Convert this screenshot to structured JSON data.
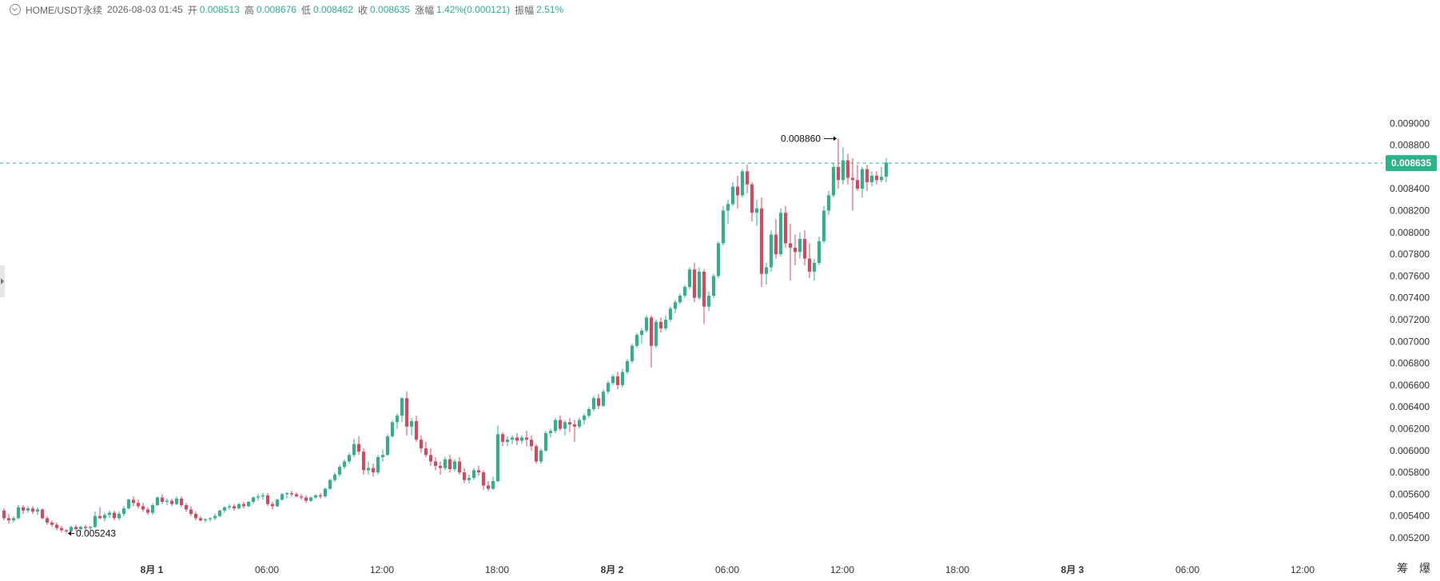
{
  "header": {
    "symbol": "HOME/USDT永续",
    "datetime": "2026-08-03 01:45",
    "open_label": "开",
    "open": "0.008513",
    "high_label": "高",
    "high": "0.008676",
    "low_label": "低",
    "low": "0.008462",
    "close_label": "收",
    "close": "0.008635",
    "change_label": "涨幅",
    "change": "1.42%(0.000121)",
    "amp_label": "振幅",
    "amp": "2.51%"
  },
  "footer": {
    "btn1": "筹",
    "btn2": "爆"
  },
  "chart_data": {
    "type": "candlestick",
    "price_axis_ticks": [
      "0.005200",
      "0.005400",
      "0.005600",
      "0.005800",
      "0.006000",
      "0.006200",
      "0.006400",
      "0.006600",
      "0.006800",
      "0.007000",
      "0.007200",
      "0.007400",
      "0.007600",
      "0.007800",
      "0.008000",
      "0.008200",
      "0.008400",
      "0.008600",
      "0.008800",
      "0.009000"
    ],
    "time_axis_ticks": [
      {
        "label": "8月 1",
        "bold": true
      },
      {
        "label": "06:00",
        "bold": false
      },
      {
        "label": "12:00",
        "bold": false
      },
      {
        "label": "18:00",
        "bold": false
      },
      {
        "label": "8月 2",
        "bold": true
      },
      {
        "label": "06:00",
        "bold": false
      },
      {
        "label": "12:00",
        "bold": false
      },
      {
        "label": "18:00",
        "bold": false
      },
      {
        "label": "8月 3",
        "bold": true
      },
      {
        "label": "06:00",
        "bold": false
      },
      {
        "label": "12:00",
        "bold": false
      }
    ],
    "last_price": "0.008635",
    "max_label": "0.008860",
    "min_label": "0.005243",
    "colors": {
      "up": "#2bb38a",
      "down": "#e0435a",
      "last_line": "#2bb38a"
    },
    "candles": [
      [
        0.00545,
        0.00547,
        0.00536,
        0.00538
      ],
      [
        0.00538,
        0.00542,
        0.00533,
        0.00536
      ],
      [
        0.00536,
        0.0054,
        0.00534,
        0.00538
      ],
      [
        0.00538,
        0.0055,
        0.00537,
        0.00548
      ],
      [
        0.00548,
        0.0055,
        0.00542,
        0.00545
      ],
      [
        0.00545,
        0.00549,
        0.00543,
        0.00547
      ],
      [
        0.00547,
        0.00549,
        0.00542,
        0.00544
      ],
      [
        0.00544,
        0.00548,
        0.00541,
        0.00546
      ],
      [
        0.00546,
        0.00547,
        0.00537,
        0.00538
      ],
      [
        0.00538,
        0.0054,
        0.00532,
        0.00534
      ],
      [
        0.00534,
        0.00536,
        0.0053,
        0.00532
      ],
      [
        0.00532,
        0.00534,
        0.00527,
        0.00529
      ],
      [
        0.00529,
        0.00531,
        0.00525,
        0.00527
      ],
      [
        0.00527,
        0.00528,
        0.00524,
        0.00526
      ],
      [
        0.00526,
        0.00531,
        0.00525,
        0.0053
      ],
      [
        0.0053,
        0.00532,
        0.00526,
        0.00528
      ],
      [
        0.00528,
        0.00531,
        0.00526,
        0.0053
      ],
      [
        0.0053,
        0.00532,
        0.00527,
        0.00529
      ],
      [
        0.00529,
        0.00531,
        0.00527,
        0.0053
      ],
      [
        0.0053,
        0.00544,
        0.00529,
        0.0054
      ],
      [
        0.0054,
        0.00548,
        0.00537,
        0.00538
      ],
      [
        0.00538,
        0.00543,
        0.00535,
        0.00541
      ],
      [
        0.00541,
        0.00545,
        0.00538,
        0.00543
      ],
      [
        0.00543,
        0.00545,
        0.00536,
        0.00538
      ],
      [
        0.00538,
        0.00544,
        0.00536,
        0.00542
      ],
      [
        0.00542,
        0.00549,
        0.0054,
        0.00547
      ],
      [
        0.00547,
        0.00556,
        0.00546,
        0.00555
      ],
      [
        0.00555,
        0.00558,
        0.00549,
        0.00552
      ],
      [
        0.00552,
        0.00555,
        0.00547,
        0.00549
      ],
      [
        0.00549,
        0.00552,
        0.00544,
        0.00546
      ],
      [
        0.00546,
        0.00548,
        0.00541,
        0.00543
      ],
      [
        0.00543,
        0.00552,
        0.00541,
        0.0055
      ],
      [
        0.0055,
        0.00558,
        0.00549,
        0.00557
      ],
      [
        0.00557,
        0.0056,
        0.00551,
        0.00553
      ],
      [
        0.00553,
        0.00556,
        0.0055,
        0.00554
      ],
      [
        0.00554,
        0.00556,
        0.00549,
        0.00551
      ],
      [
        0.00551,
        0.00558,
        0.0055,
        0.00556
      ],
      [
        0.00556,
        0.00558,
        0.00548,
        0.0055
      ],
      [
        0.0055,
        0.00552,
        0.00544,
        0.00546
      ],
      [
        0.00546,
        0.00549,
        0.0054,
        0.00542
      ],
      [
        0.00542,
        0.00544,
        0.00536,
        0.00538
      ],
      [
        0.00538,
        0.0054,
        0.00535,
        0.00536
      ],
      [
        0.00536,
        0.00538,
        0.00534,
        0.00537
      ],
      [
        0.00537,
        0.00539,
        0.00535,
        0.00538
      ],
      [
        0.00538,
        0.00542,
        0.00536,
        0.0054
      ],
      [
        0.0054,
        0.00546,
        0.00539,
        0.00545
      ],
      [
        0.00545,
        0.00549,
        0.00543,
        0.00548
      ],
      [
        0.00548,
        0.00551,
        0.00546,
        0.00549
      ],
      [
        0.00549,
        0.00551,
        0.00545,
        0.00547
      ],
      [
        0.00547,
        0.00552,
        0.00546,
        0.00551
      ],
      [
        0.00551,
        0.00553,
        0.00547,
        0.00549
      ],
      [
        0.00549,
        0.00554,
        0.00548,
        0.00553
      ],
      [
        0.00553,
        0.00558,
        0.00551,
        0.00557
      ],
      [
        0.00557,
        0.0056,
        0.00554,
        0.00558
      ],
      [
        0.00558,
        0.00561,
        0.00555,
        0.00559
      ],
      [
        0.00559,
        0.00561,
        0.00549,
        0.00551
      ],
      [
        0.00551,
        0.00553,
        0.00546,
        0.00549
      ],
      [
        0.00549,
        0.00556,
        0.00548,
        0.00555
      ],
      [
        0.00555,
        0.00561,
        0.00554,
        0.0056
      ],
      [
        0.0056,
        0.00562,
        0.00556,
        0.00561
      ],
      [
        0.00561,
        0.00563,
        0.00558,
        0.0056
      ],
      [
        0.0056,
        0.00562,
        0.00557,
        0.00558
      ],
      [
        0.00558,
        0.0056,
        0.00555,
        0.00557
      ],
      [
        0.00557,
        0.00559,
        0.00552,
        0.00554
      ],
      [
        0.00554,
        0.00558,
        0.00553,
        0.00557
      ],
      [
        0.00557,
        0.0056,
        0.00556,
        0.00559
      ],
      [
        0.00559,
        0.00561,
        0.00556,
        0.00558
      ],
      [
        0.00558,
        0.00566,
        0.00557,
        0.00565
      ],
      [
        0.00565,
        0.00574,
        0.00564,
        0.00573
      ],
      [
        0.00573,
        0.0058,
        0.00571,
        0.00578
      ],
      [
        0.00578,
        0.00587,
        0.00576,
        0.00585
      ],
      [
        0.00585,
        0.00592,
        0.00583,
        0.0059
      ],
      [
        0.0059,
        0.00598,
        0.00588,
        0.00596
      ],
      [
        0.00596,
        0.00611,
        0.00594,
        0.00606
      ],
      [
        0.00606,
        0.00613,
        0.00596,
        0.00599
      ],
      [
        0.00599,
        0.00602,
        0.00578,
        0.00582
      ],
      [
        0.00582,
        0.0059,
        0.00578,
        0.00584
      ],
      [
        0.00584,
        0.00588,
        0.00576,
        0.0058
      ],
      [
        0.0058,
        0.00596,
        0.00578,
        0.00594
      ],
      [
        0.00594,
        0.00601,
        0.0059,
        0.00596
      ],
      [
        0.00596,
        0.00615,
        0.00595,
        0.00613
      ],
      [
        0.00613,
        0.00628,
        0.00612,
        0.00626
      ],
      [
        0.00626,
        0.00634,
        0.0062,
        0.00632
      ],
      [
        0.00632,
        0.00649,
        0.00626,
        0.00648
      ],
      [
        0.00648,
        0.00654,
        0.00614,
        0.00622
      ],
      [
        0.00622,
        0.0063,
        0.00614,
        0.00627
      ],
      [
        0.00627,
        0.00632,
        0.00608,
        0.0061
      ],
      [
        0.0061,
        0.00614,
        0.00598,
        0.00602
      ],
      [
        0.00602,
        0.00608,
        0.00594,
        0.00596
      ],
      [
        0.00596,
        0.00602,
        0.00586,
        0.0059
      ],
      [
        0.0059,
        0.00594,
        0.00582,
        0.00586
      ],
      [
        0.00586,
        0.0059,
        0.00578,
        0.00584
      ],
      [
        0.00584,
        0.00594,
        0.00582,
        0.00592
      ],
      [
        0.00592,
        0.00596,
        0.0058,
        0.00583
      ],
      [
        0.00583,
        0.00592,
        0.00581,
        0.0059
      ],
      [
        0.0059,
        0.00594,
        0.00578,
        0.0058
      ],
      [
        0.0058,
        0.00584,
        0.0057,
        0.00573
      ],
      [
        0.00573,
        0.00578,
        0.0057,
        0.00575
      ],
      [
        0.00575,
        0.00584,
        0.00573,
        0.00582
      ],
      [
        0.00582,
        0.00586,
        0.00577,
        0.0058
      ],
      [
        0.0058,
        0.00582,
        0.00564,
        0.00568
      ],
      [
        0.00568,
        0.00572,
        0.00563,
        0.00565
      ],
      [
        0.00565,
        0.00576,
        0.00564,
        0.00572
      ],
      [
        0.00572,
        0.00623,
        0.00571,
        0.00615
      ],
      [
        0.00615,
        0.00617,
        0.00604,
        0.00608
      ],
      [
        0.00608,
        0.00613,
        0.00604,
        0.0061
      ],
      [
        0.0061,
        0.00614,
        0.00606,
        0.00612
      ],
      [
        0.00612,
        0.00616,
        0.00605,
        0.00609
      ],
      [
        0.00609,
        0.00614,
        0.00606,
        0.00612
      ],
      [
        0.00612,
        0.00618,
        0.00604,
        0.0061
      ],
      [
        0.0061,
        0.00614,
        0.006,
        0.00604
      ],
      [
        0.00604,
        0.00606,
        0.00588,
        0.0059
      ],
      [
        0.0059,
        0.00602,
        0.00588,
        0.006
      ],
      [
        0.006,
        0.00618,
        0.00599,
        0.00616
      ],
      [
        0.00616,
        0.0062,
        0.00612,
        0.00618
      ],
      [
        0.00618,
        0.0063,
        0.00616,
        0.00628
      ],
      [
        0.00628,
        0.00632,
        0.00618,
        0.0062
      ],
      [
        0.0062,
        0.00628,
        0.00614,
        0.00626
      ],
      [
        0.00626,
        0.0063,
        0.00617,
        0.00624
      ],
      [
        0.00624,
        0.00628,
        0.00608,
        0.00622
      ],
      [
        0.00622,
        0.0063,
        0.0062,
        0.00628
      ],
      [
        0.00628,
        0.00634,
        0.00624,
        0.00632
      ],
      [
        0.00632,
        0.0064,
        0.0063,
        0.00638
      ],
      [
        0.00638,
        0.0065,
        0.00636,
        0.00648
      ],
      [
        0.00648,
        0.00652,
        0.00638,
        0.00641
      ],
      [
        0.00641,
        0.00656,
        0.0064,
        0.00654
      ],
      [
        0.00654,
        0.00664,
        0.00652,
        0.00662
      ],
      [
        0.00662,
        0.0067,
        0.0066,
        0.00668
      ],
      [
        0.00668,
        0.00672,
        0.00656,
        0.0066
      ],
      [
        0.0066,
        0.00675,
        0.00658,
        0.00672
      ],
      [
        0.00672,
        0.00684,
        0.0067,
        0.00682
      ],
      [
        0.00682,
        0.00698,
        0.0068,
        0.00696
      ],
      [
        0.00696,
        0.00708,
        0.00694,
        0.00706
      ],
      [
        0.00706,
        0.00712,
        0.00698,
        0.0071
      ],
      [
        0.0071,
        0.00724,
        0.00708,
        0.00722
      ],
      [
        0.00722,
        0.00724,
        0.00676,
        0.00696
      ],
      [
        0.00696,
        0.0072,
        0.00694,
        0.00718
      ],
      [
        0.00718,
        0.00722,
        0.00708,
        0.00712
      ],
      [
        0.00712,
        0.00724,
        0.0071,
        0.0072
      ],
      [
        0.0072,
        0.00732,
        0.00718,
        0.0073
      ],
      [
        0.0073,
        0.00738,
        0.00726,
        0.00736
      ],
      [
        0.00736,
        0.00744,
        0.00734,
        0.00742
      ],
      [
        0.00742,
        0.00752,
        0.0074,
        0.0075
      ],
      [
        0.0075,
        0.00768,
        0.00748,
        0.00766
      ],
      [
        0.00766,
        0.00772,
        0.00736,
        0.0074
      ],
      [
        0.0074,
        0.00768,
        0.00738,
        0.00764
      ],
      [
        0.00764,
        0.00766,
        0.00716,
        0.00732
      ],
      [
        0.00732,
        0.00746,
        0.00728,
        0.00742
      ],
      [
        0.00742,
        0.00762,
        0.0074,
        0.0076
      ],
      [
        0.0076,
        0.00792,
        0.00758,
        0.0079
      ],
      [
        0.0079,
        0.00824,
        0.00788,
        0.0082
      ],
      [
        0.0082,
        0.0083,
        0.00808,
        0.00826
      ],
      [
        0.00826,
        0.00846,
        0.00824,
        0.00842
      ],
      [
        0.00842,
        0.00852,
        0.00822,
        0.00834
      ],
      [
        0.00834,
        0.00858,
        0.00832,
        0.00856
      ],
      [
        0.00856,
        0.00862,
        0.00836,
        0.00844
      ],
      [
        0.00844,
        0.00846,
        0.0081,
        0.00818
      ],
      [
        0.00818,
        0.0083,
        0.00806,
        0.00822
      ],
      [
        0.00822,
        0.00832,
        0.0075,
        0.00762
      ],
      [
        0.00762,
        0.00772,
        0.00752,
        0.00768
      ],
      [
        0.00768,
        0.00802,
        0.00764,
        0.00798
      ],
      [
        0.00798,
        0.00812,
        0.00776,
        0.0078
      ],
      [
        0.0078,
        0.00822,
        0.00778,
        0.00818
      ],
      [
        0.00818,
        0.00824,
        0.00786,
        0.0079
      ],
      [
        0.0079,
        0.00808,
        0.00756,
        0.00786
      ],
      [
        0.00786,
        0.00798,
        0.0077,
        0.00782
      ],
      [
        0.00782,
        0.008,
        0.00776,
        0.00794
      ],
      [
        0.00794,
        0.00802,
        0.0077,
        0.00776
      ],
      [
        0.00776,
        0.0079,
        0.00758,
        0.00764
      ],
      [
        0.00764,
        0.00776,
        0.00756,
        0.00772
      ],
      [
        0.00772,
        0.00796,
        0.0077,
        0.00792
      ],
      [
        0.00792,
        0.00824,
        0.0079,
        0.0082
      ],
      [
        0.0082,
        0.00838,
        0.00816,
        0.00834
      ],
      [
        0.00834,
        0.00864,
        0.00832,
        0.0086
      ],
      [
        0.0086,
        0.00886,
        0.0084,
        0.00848
      ],
      [
        0.00848,
        0.00878,
        0.00844,
        0.00866
      ],
      [
        0.00866,
        0.00872,
        0.00844,
        0.0085
      ],
      [
        0.0085,
        0.00868,
        0.0082,
        0.00848
      ],
      [
        0.00848,
        0.00862,
        0.00838,
        0.0084
      ],
      [
        0.0084,
        0.0086,
        0.00832,
        0.00858
      ],
      [
        0.00858,
        0.00862,
        0.00838,
        0.00846
      ],
      [
        0.00846,
        0.00856,
        0.00842,
        0.00852
      ],
      [
        0.00852,
        0.00856,
        0.00844,
        0.00848
      ],
      [
        0.00848,
        0.0086,
        0.00846,
        0.00851
      ],
      [
        0.00851,
        0.00868,
        0.00846,
        0.00864
      ]
    ]
  }
}
